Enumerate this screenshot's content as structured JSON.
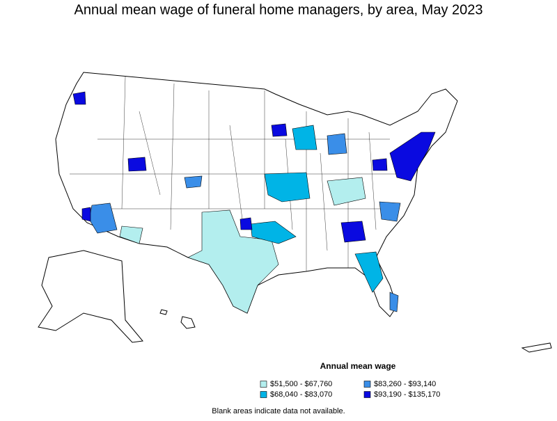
{
  "title": "Annual mean wage of funeral home managers, by area, May 2023",
  "legend": {
    "title": "Annual mean wage",
    "items": [
      {
        "label": "$51,500 - $67,760",
        "color": "#b3eeee"
      },
      {
        "label": "$68,040 - $83,070",
        "color": "#00b4e6"
      },
      {
        "label": "$83,260 - $93,140",
        "color": "#3a8ee8"
      },
      {
        "label": "$93,190 - $135,170",
        "color": "#0a0ae0"
      }
    ]
  },
  "footnote": "Blank areas indicate data not available."
}
